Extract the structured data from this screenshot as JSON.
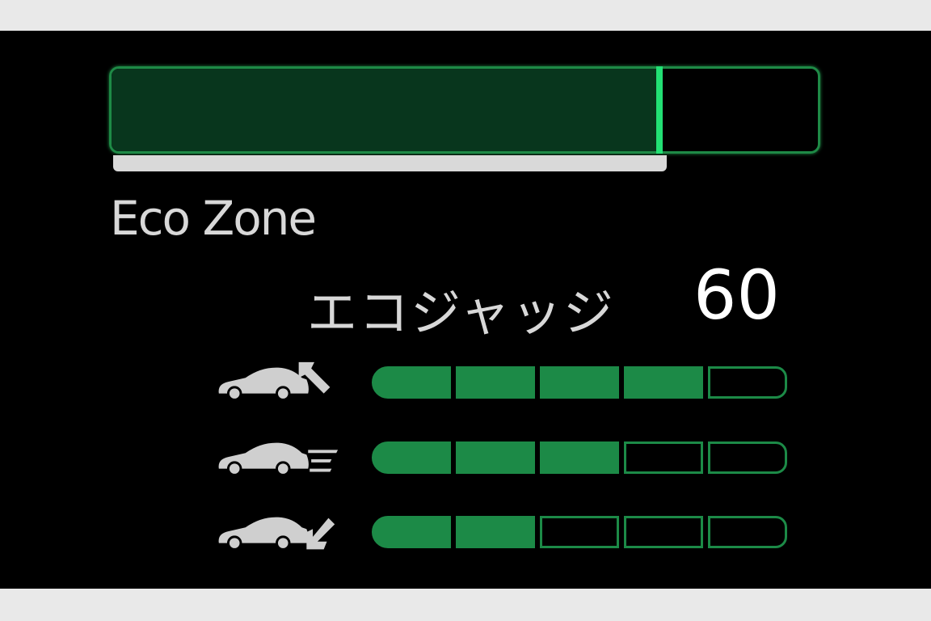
{
  "eco_bar": {
    "level_percent": 78,
    "color_fill": "#08361d",
    "color_marker": "#22e074",
    "color_border": "#1e8a46"
  },
  "zone_label": "Eco Zone",
  "eco_judge": {
    "label": "エコジャッジ",
    "score": "60"
  },
  "ratings": [
    {
      "icon": "car-start-acceleration-icon",
      "level": 4,
      "max": 5
    },
    {
      "icon": "car-cruising-icon",
      "level": 3,
      "max": 5
    },
    {
      "icon": "car-deceleration-icon",
      "level": 2,
      "max": 5
    }
  ]
}
